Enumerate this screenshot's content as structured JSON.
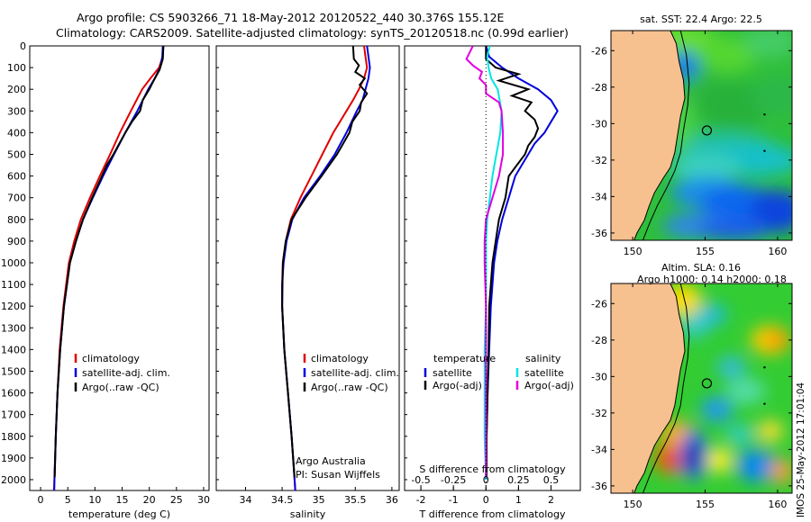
{
  "header": {
    "line1": "Argo profile: CS 5903266_71 18-May-2012 20120522_440 30.376S 155.12E",
    "line2": "Climatology: CARS2009. Satellite-adjusted climatology: synTS_20120518.nc (0.99d earlier)"
  },
  "side_stamp": "IMOS 25-May-2012 17:01:04",
  "colors": {
    "climatology": "#e00000",
    "satellite": "#0000dd",
    "argo": "#000000",
    "sat_salinity": "#00e5e5",
    "argo_salinity": "#e000e0",
    "land": "#f7c08f"
  },
  "chart_data": [
    {
      "type": "line",
      "xlabel": "temperature (deg C)",
      "ylabel": "",
      "xlim": [
        -2,
        31
      ],
      "ylim": [
        2050,
        0
      ],
      "xticks": [
        "0",
        "5",
        "10",
        "15",
        "20",
        "25",
        "30"
      ],
      "xtick_values": [
        0,
        5,
        10,
        15,
        20,
        25,
        30
      ],
      "yticks": [
        "0",
        "100",
        "200",
        "300",
        "400",
        "500",
        "600",
        "700",
        "800",
        "900",
        "1000",
        "1100",
        "1200",
        "1300",
        "1400",
        "1500",
        "1600",
        "1700",
        "1800",
        "1900",
        "2000"
      ],
      "ytick_values": [
        0,
        100,
        200,
        300,
        400,
        500,
        600,
        700,
        800,
        900,
        1000,
        1100,
        1200,
        1300,
        1400,
        1500,
        1600,
        1700,
        1800,
        1900,
        2000
      ],
      "legend": [
        "climatology",
        "satellite-adj. clim.",
        "Argo(..raw -QC)"
      ],
      "legend_position": "lower-middle",
      "series": [
        {
          "name": "climatology",
          "depth": [
            0,
            50,
            100,
            150,
            200,
            300,
            400,
            500,
            600,
            700,
            800,
            900,
            1000,
            1200,
            1400,
            1600,
            1800,
            2000,
            2050
          ],
          "values": [
            22.6,
            22.5,
            21.8,
            20.2,
            18.7,
            16.6,
            14.6,
            12.8,
            10.9,
            9.1,
            7.4,
            6.2,
            5.2,
            4.2,
            3.5,
            3.1,
            2.8,
            2.55,
            2.5
          ]
        },
        {
          "name": "satellite-adj. clim.",
          "depth": [
            0,
            50,
            100,
            150,
            200,
            300,
            400,
            500,
            600,
            700,
            800,
            900,
            1000,
            1200,
            1400,
            1600,
            1800,
            2000,
            2050
          ],
          "values": [
            22.5,
            22.4,
            22.0,
            21.0,
            19.8,
            17.8,
            15.6,
            13.5,
            11.5,
            9.6,
            7.8,
            6.5,
            5.4,
            4.3,
            3.6,
            3.1,
            2.8,
            2.55,
            2.5
          ]
        },
        {
          "name": "Argo(..raw -QC)",
          "depth": [
            0,
            60,
            110,
            160,
            200,
            250,
            300,
            350,
            400,
            450,
            500,
            550,
            600,
            700,
            800,
            900,
            1000,
            1200,
            1400,
            1600,
            1800,
            1990
          ],
          "values": [
            22.6,
            22.5,
            21.9,
            20.8,
            20.0,
            18.8,
            18.3,
            16.8,
            15.6,
            14.5,
            13.4,
            12.2,
            11.3,
            9.5,
            7.8,
            6.5,
            5.4,
            4.3,
            3.6,
            3.1,
            2.8,
            2.6
          ]
        }
      ]
    },
    {
      "type": "line",
      "xlabel": "salinity",
      "ylabel": "",
      "xlim": [
        33.6,
        36.1
      ],
      "ylim": [
        2050,
        0
      ],
      "xticks": [
        "34",
        "34.5",
        "35",
        "35.5",
        "36"
      ],
      "xtick_values": [
        34,
        34.5,
        35,
        35.5,
        36
      ],
      "legend": [
        "climatology",
        "satellite-adj. clim.",
        "Argo(..raw -QC)"
      ],
      "legend_position": "lower-right",
      "annotations": [
        "Argo Australia",
        "PI: Susan Wijffels"
      ],
      "series": [
        {
          "name": "climatology",
          "depth": [
            0,
            50,
            100,
            150,
            200,
            250,
            300,
            400,
            500,
            600,
            700,
            800,
            900,
            1000,
            1100,
            1200,
            1400,
            1600,
            1800,
            2000,
            2050
          ],
          "values": [
            35.62,
            35.64,
            35.66,
            35.62,
            35.55,
            35.47,
            35.38,
            35.2,
            35.05,
            34.9,
            34.75,
            34.62,
            34.55,
            34.51,
            34.5,
            34.5,
            34.53,
            34.58,
            34.63,
            34.67,
            34.68
          ]
        },
        {
          "name": "satellite-adj. clim.",
          "depth": [
            0,
            50,
            100,
            150,
            200,
            250,
            300,
            400,
            500,
            600,
            700,
            800,
            900,
            1000,
            1100,
            1200,
            1400,
            1600,
            1800,
            2000,
            2050
          ],
          "values": [
            35.66,
            35.68,
            35.7,
            35.68,
            35.64,
            35.6,
            35.52,
            35.38,
            35.22,
            35.02,
            34.8,
            34.64,
            34.56,
            34.52,
            34.5,
            34.5,
            34.53,
            34.58,
            34.63,
            34.67,
            34.68
          ]
        },
        {
          "name": "Argo(..raw -QC)",
          "depth": [
            0,
            60,
            90,
            120,
            150,
            180,
            220,
            260,
            300,
            350,
            400,
            500,
            600,
            700,
            800,
            900,
            1000,
            1200,
            1400,
            1600,
            1800,
            1990
          ],
          "values": [
            35.47,
            35.48,
            35.55,
            35.5,
            35.63,
            35.56,
            35.66,
            35.58,
            35.56,
            35.46,
            35.42,
            35.25,
            35.04,
            34.82,
            34.63,
            34.55,
            34.51,
            34.5,
            34.53,
            34.58,
            34.63,
            34.67
          ]
        }
      ]
    },
    {
      "type": "line",
      "xlabel": "T difference from climatology",
      "xlabel_top": "S difference from climatology",
      "xlim": [
        -2.5,
        2.9
      ],
      "ylim": [
        2050,
        0
      ],
      "xticks": [
        "-2",
        "-1",
        "0",
        "1",
        "2"
      ],
      "xtick_values": [
        -2,
        -1,
        0,
        1,
        2
      ],
      "xticks_top": [
        "-0.5",
        "-0.25",
        "0",
        "0.25",
        "0.5"
      ],
      "xtick_top_values": [
        -0.5,
        -0.25,
        0,
        0.25,
        0.5
      ],
      "legend_titles": [
        "temperature",
        "salinity"
      ],
      "legend": [
        "satellite",
        "Argo(-adj)",
        "satellite",
        "Argo(-adj)"
      ],
      "legend_position": "lower",
      "series": [
        {
          "name": "satellite",
          "quantity": "temperature",
          "depth": [
            0,
            50,
            100,
            150,
            200,
            250,
            300,
            350,
            400,
            450,
            500,
            550,
            600,
            700,
            800,
            900,
            1000,
            1200,
            1400,
            1600,
            1800,
            2000
          ],
          "values": [
            0.0,
            0.1,
            0.5,
            1.0,
            1.6,
            2.0,
            2.2,
            2.0,
            1.8,
            1.5,
            1.3,
            1.1,
            0.9,
            0.7,
            0.5,
            0.35,
            0.25,
            0.15,
            0.1,
            0.05,
            0.02,
            0.0
          ]
        },
        {
          "name": "Argo(-adj)",
          "quantity": "temperature",
          "depth": [
            0,
            60,
            100,
            130,
            160,
            200,
            230,
            260,
            300,
            340,
            380,
            420,
            460,
            500,
            560,
            600,
            700,
            800,
            900,
            1000,
            1200,
            1400,
            1600,
            1800,
            1990
          ],
          "values": [
            0.0,
            0.0,
            0.3,
            1.0,
            0.4,
            1.3,
            0.8,
            1.4,
            1.2,
            1.5,
            1.6,
            1.5,
            1.3,
            1.2,
            0.9,
            0.7,
            0.6,
            0.4,
            0.3,
            0.2,
            0.1,
            0.08,
            0.05,
            0.02,
            0.02
          ]
        },
        {
          "name": "satellite",
          "quantity": "salinity",
          "depth": [
            0,
            50,
            100,
            150,
            200,
            300,
            400,
            500,
            600,
            700,
            800,
            900,
            1000,
            1200,
            1400,
            1600,
            1800,
            2000
          ],
          "values": [
            0.03,
            0.01,
            0.02,
            0.04,
            0.09,
            0.12,
            0.11,
            0.08,
            0.05,
            0.03,
            0.01,
            0.0,
            0.0,
            0.0,
            -0.01,
            -0.01,
            -0.01,
            0.0
          ]
        },
        {
          "name": "Argo(-adj)",
          "quantity": "salinity",
          "depth": [
            0,
            60,
            90,
            120,
            150,
            180,
            220,
            260,
            300,
            400,
            500,
            600,
            700,
            800,
            900,
            1000,
            1200,
            1400,
            1600,
            1800,
            1990
          ],
          "values": [
            -0.1,
            -0.15,
            -0.1,
            -0.03,
            -0.05,
            0.0,
            0.0,
            0.1,
            0.12,
            0.13,
            0.13,
            0.1,
            0.05,
            0.0,
            -0.01,
            -0.01,
            0.0,
            0.0,
            0.0,
            0.0,
            0.0
          ]
        }
      ]
    },
    {
      "type": "heatmap",
      "title": "sat. SST: 22.4  Argo: 22.5",
      "xlim": [
        148.5,
        161
      ],
      "ylim": [
        -36.4,
        -24.9
      ],
      "xticks": [
        "150",
        "155",
        "160"
      ],
      "xtick_values": [
        150,
        155,
        160
      ],
      "yticks": [
        "-26",
        "-28",
        "-30",
        "-32",
        "-34",
        "-36"
      ],
      "ytick_values": [
        -26,
        -28,
        -30,
        -32,
        -34,
        -36
      ],
      "marker": {
        "lon": 155.12,
        "lat": -30.376
      }
    },
    {
      "type": "heatmap",
      "title": "Altim. SLA: 0.16",
      "subtitle": "Argo h1000: 0.14  h2000: 0.18",
      "xlim": [
        148.5,
        161
      ],
      "ylim": [
        -36.4,
        -24.9
      ],
      "xticks": [
        "150",
        "155",
        "160"
      ],
      "xtick_values": [
        150,
        155,
        160
      ],
      "yticks": [
        "-26",
        "-28",
        "-30",
        "-32",
        "-34",
        "-36"
      ],
      "ytick_values": [
        -26,
        -28,
        -30,
        -32,
        -34,
        -36
      ],
      "marker": {
        "lon": 155.12,
        "lat": -30.376
      }
    }
  ]
}
